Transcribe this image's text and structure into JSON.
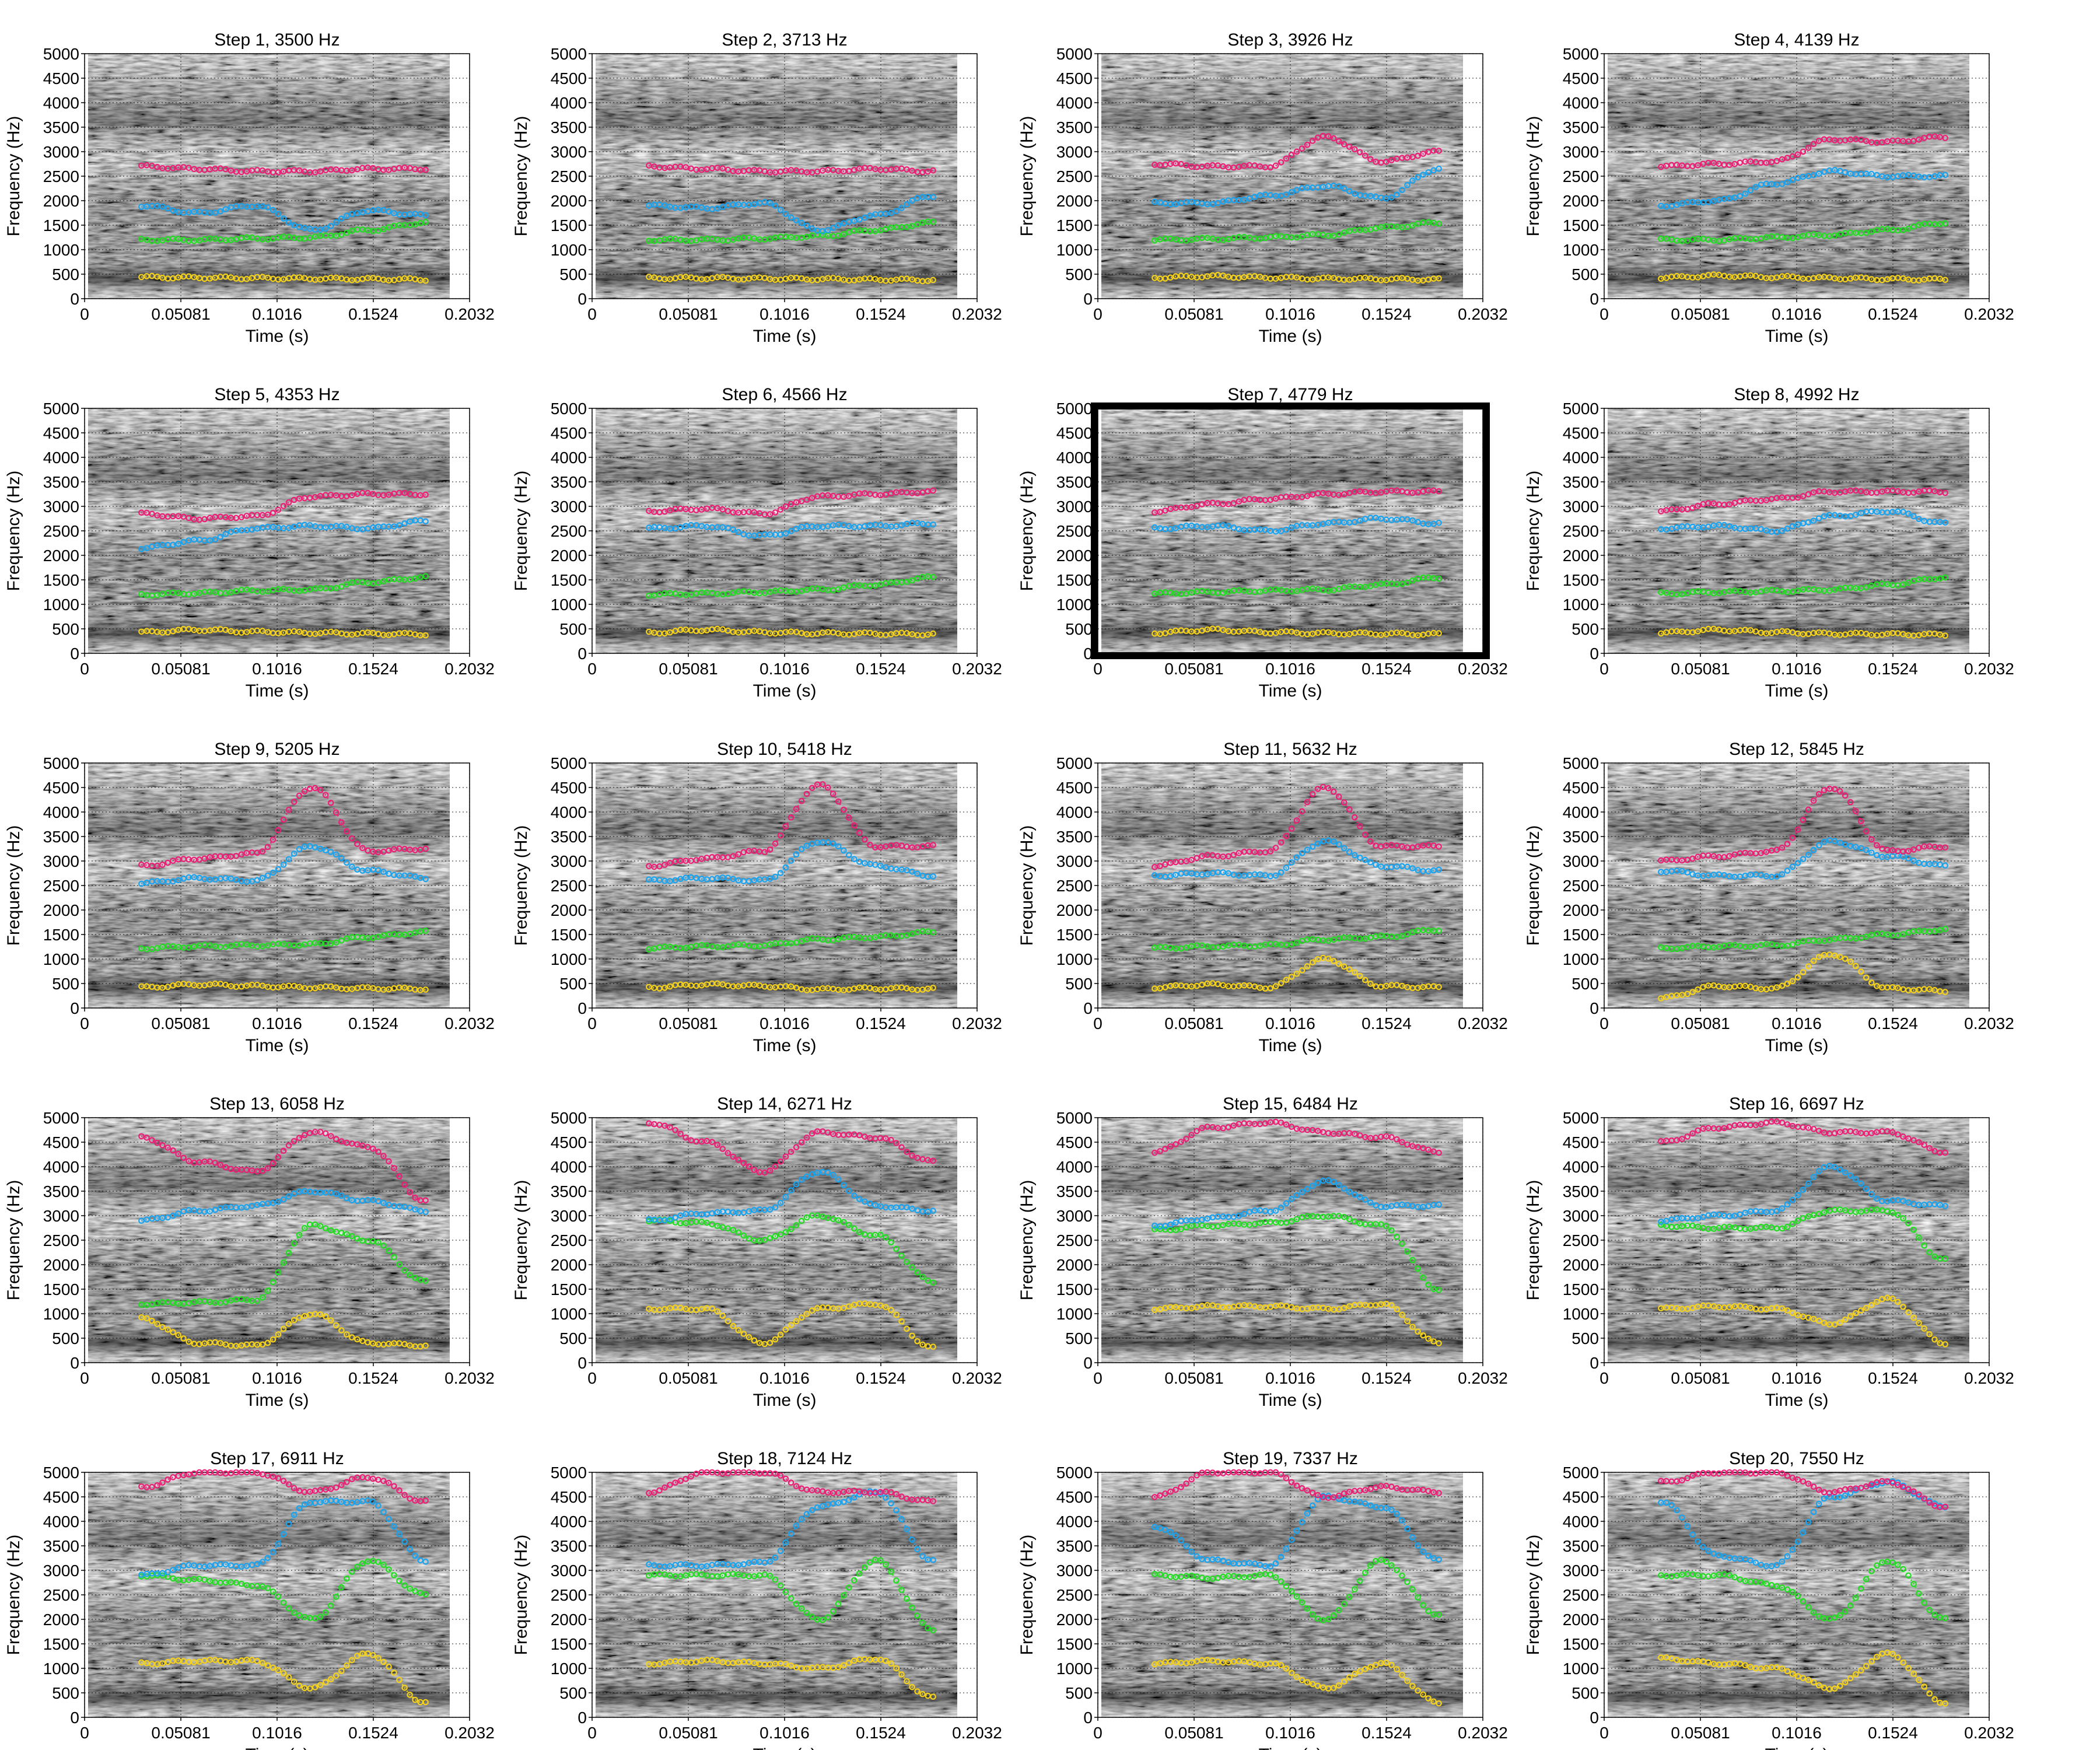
{
  "figure": {
    "highlighted_panel": 7
  },
  "chart_data": {
    "type": "scatter",
    "xlabel": "Time (s)",
    "ylabel": "Frequency (Hz)",
    "xlim": [
      0,
      0.2032
    ],
    "ylim": [
      0,
      5000
    ],
    "xticks": [
      "0",
      "0.05081",
      "0.1016",
      "0.1524",
      "0.2032"
    ],
    "yticks": [
      "0",
      "500",
      "1000",
      "1500",
      "2000",
      "2500",
      "3000",
      "3500",
      "4000",
      "4500",
      "5000"
    ],
    "grid": true,
    "background": "grayscale spectrogram",
    "series_colors": [
      "#f5d21c",
      "#22dd22",
      "#1aa3ee",
      "#ea1f75"
    ],
    "panels": [
      {
        "title": "Step 1, 3500 Hz",
        "f1": [
          440,
          430,
          420,
          410,
          400,
          390
        ],
        "f2": [
          1200,
          1200,
          1230,
          1250,
          1400,
          1550
        ],
        "f3": [
          1900,
          1750,
          1900,
          1400,
          1800,
          1700
        ],
        "f4": [
          2700,
          2650,
          2600,
          2600,
          2650,
          2650
        ]
      },
      {
        "title": "Step 2, 3713 Hz",
        "f1": [
          420,
          420,
          410,
          400,
          390,
          380
        ],
        "f2": [
          1200,
          1200,
          1230,
          1280,
          1400,
          1550
        ],
        "f3": [
          1900,
          1850,
          1950,
          1400,
          1700,
          2100
        ],
        "f4": [
          2700,
          2650,
          2600,
          2600,
          2650,
          2600
        ]
      },
      {
        "title": "Step 3, 3926 Hz",
        "f1": [
          430,
          460,
          430,
          410,
          400,
          390
        ],
        "f2": [
          1200,
          1220,
          1250,
          1300,
          1450,
          1550
        ],
        "f3": [
          1950,
          1950,
          2100,
          2300,
          2050,
          2650
        ],
        "f4": [
          2750,
          2700,
          2700,
          3300,
          2800,
          3000
        ]
      },
      {
        "title": "Step 4, 4139 Hz",
        "f1": [
          430,
          470,
          440,
          420,
          400,
          390
        ],
        "f2": [
          1200,
          1200,
          1250,
          1300,
          1400,
          1550
        ],
        "f3": [
          1900,
          2000,
          2350,
          2600,
          2500,
          2500
        ],
        "f4": [
          2700,
          2750,
          2800,
          3250,
          3200,
          3300
        ]
      },
      {
        "title": "Step 5, 4353 Hz",
        "f1": [
          430,
          480,
          440,
          420,
          400,
          390
        ],
        "f2": [
          1200,
          1230,
          1280,
          1300,
          1450,
          1550
        ],
        "f3": [
          2150,
          2300,
          2550,
          2600,
          2550,
          2700
        ],
        "f4": [
          2850,
          2750,
          2800,
          3200,
          3250,
          3250
        ]
      },
      {
        "title": "Step 6, 4566 Hz",
        "f1": [
          420,
          480,
          430,
          410,
          400,
          390
        ],
        "f2": [
          1200,
          1220,
          1250,
          1300,
          1400,
          1550
        ],
        "f3": [
          2550,
          2600,
          2400,
          2600,
          2600,
          2650
        ],
        "f4": [
          2900,
          2950,
          2850,
          3200,
          3250,
          3300
        ]
      },
      {
        "title": "Step 7, 4779 Hz",
        "f1": [
          420,
          480,
          430,
          410,
          400,
          390
        ],
        "f2": [
          1220,
          1250,
          1280,
          1300,
          1400,
          1550
        ],
        "f3": [
          2550,
          2600,
          2500,
          2650,
          2750,
          2650
        ],
        "f4": [
          2900,
          3050,
          3150,
          3250,
          3300,
          3300
        ]
      },
      {
        "title": "Step 8, 4992 Hz",
        "f1": [
          420,
          480,
          430,
          400,
          390,
          380
        ],
        "f2": [
          1220,
          1250,
          1270,
          1300,
          1400,
          1550
        ],
        "f3": [
          2550,
          2600,
          2500,
          2800,
          2900,
          2650
        ],
        "f4": [
          2900,
          3050,
          3150,
          3300,
          3300,
          3300
        ]
      },
      {
        "title": "Step 9, 5205 Hz",
        "f1": [
          420,
          480,
          450,
          420,
          400,
          390
        ],
        "f2": [
          1220,
          1260,
          1280,
          1300,
          1450,
          1550
        ],
        "f3": [
          2550,
          2650,
          2600,
          3300,
          2800,
          2650
        ],
        "f4": [
          2900,
          3050,
          3150,
          4500,
          3200,
          3250
        ]
      },
      {
        "title": "Step 10, 5418 Hz",
        "f1": [
          420,
          480,
          450,
          380,
          400,
          390
        ],
        "f2": [
          1220,
          1260,
          1280,
          1400,
          1450,
          1550
        ],
        "f3": [
          2600,
          2650,
          2600,
          3400,
          2900,
          2700
        ],
        "f4": [
          2900,
          3050,
          3200,
          4550,
          3300,
          3300
        ]
      },
      {
        "title": "Step 11, 5632 Hz",
        "f1": [
          420,
          480,
          420,
          1000,
          450,
          420
        ],
        "f2": [
          1220,
          1260,
          1280,
          1400,
          1450,
          1600
        ],
        "f3": [
          2700,
          2750,
          2700,
          3400,
          2900,
          2800
        ],
        "f4": [
          2900,
          3100,
          3200,
          4500,
          3300,
          3300
        ]
      },
      {
        "title": "Step 12, 5845 Hz",
        "f1": [
          200,
          450,
          400,
          1100,
          400,
          350
        ],
        "f2": [
          1220,
          1260,
          1280,
          1400,
          1500,
          1600
        ],
        "f3": [
          2800,
          2700,
          2700,
          3400,
          3100,
          2900
        ],
        "f4": [
          3000,
          3100,
          3200,
          4500,
          3200,
          3300
        ]
      },
      {
        "title": "Step 13, 6058 Hz",
        "f1": [
          900,
          400,
          350,
          1000,
          400,
          350
        ],
        "f2": [
          1200,
          1230,
          1280,
          2800,
          2500,
          1650
        ],
        "f3": [
          2900,
          3100,
          3200,
          3500,
          3300,
          3100
        ],
        "f4": [
          4600,
          4100,
          3900,
          4700,
          4400,
          3300
        ]
      },
      {
        "title": "Step 14, 6271 Hz",
        "f1": [
          1100,
          1100,
          400,
          1100,
          1200,
          300
        ],
        "f2": [
          2900,
          2850,
          2500,
          3000,
          2600,
          1650
        ],
        "f3": [
          2900,
          3050,
          3100,
          3900,
          3200,
          3100
        ],
        "f4": [
          4900,
          4500,
          3900,
          4700,
          4600,
          4100
        ]
      },
      {
        "title": "Step 15, 6484 Hz",
        "f1": [
          1100,
          1150,
          1150,
          1100,
          1200,
          400
        ],
        "f2": [
          2700,
          2800,
          2850,
          3000,
          2800,
          1500
        ],
        "f3": [
          2800,
          2950,
          3100,
          3700,
          3200,
          3200
        ],
        "f4": [
          4300,
          4800,
          4900,
          4700,
          4600,
          4300
        ]
      },
      {
        "title": "Step 16, 6697 Hz",
        "f1": [
          1100,
          1150,
          1100,
          800,
          1300,
          400
        ],
        "f2": [
          2800,
          2750,
          2750,
          3100,
          3100,
          2100
        ],
        "f3": [
          2900,
          3000,
          3100,
          4000,
          3300,
          3200
        ],
        "f4": [
          4500,
          4800,
          4900,
          4700,
          4700,
          4300
        ]
      },
      {
        "title": "Step 17, 6911 Hz",
        "f1": [
          1100,
          1150,
          1150,
          600,
          1300,
          300
        ],
        "f2": [
          2900,
          2800,
          2700,
          2000,
          3200,
          2500
        ],
        "f3": [
          2900,
          3100,
          3100,
          4400,
          4400,
          3200
        ],
        "f4": [
          4700,
          5000,
          5000,
          4600,
          4900,
          4400
        ]
      },
      {
        "title": "Step 18, 7124 Hz",
        "f1": [
          1100,
          1150,
          1100,
          1000,
          1200,
          400
        ],
        "f2": [
          2900,
          2900,
          2900,
          2000,
          3200,
          1800
        ],
        "f3": [
          3100,
          3100,
          3150,
          4300,
          4600,
          3200
        ],
        "f4": [
          4600,
          5000,
          5000,
          4600,
          4600,
          4400
        ]
      },
      {
        "title": "Step 19, 7337 Hz",
        "f1": [
          1100,
          1150,
          1100,
          600,
          1100,
          300
        ],
        "f2": [
          2900,
          2850,
          2900,
          2000,
          3200,
          2100
        ],
        "f3": [
          3900,
          3200,
          3100,
          4500,
          4300,
          3200
        ],
        "f4": [
          4500,
          5000,
          5000,
          4500,
          4700,
          4600
        ]
      },
      {
        "title": "Step 20, 7550 Hz",
        "f1": [
          1200,
          1100,
          1000,
          600,
          1300,
          300
        ],
        "f2": [
          2900,
          2900,
          2700,
          2000,
          3200,
          2000
        ],
        "f3": [
          4400,
          3300,
          3100,
          4500,
          4800,
          4300
        ],
        "f4": [
          4800,
          5000,
          5000,
          4600,
          4800,
          4300
        ]
      }
    ]
  }
}
